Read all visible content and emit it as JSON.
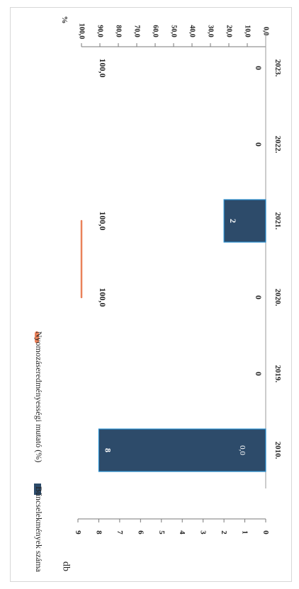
{
  "chart_data": {
    "type": "bar",
    "orientation": "rotated-90",
    "categories": [
      "2010.",
      "2019.",
      "2020.",
      "2021.",
      "2022.",
      "2023."
    ],
    "series": [
      {
        "name": "Bűncselekmények száma",
        "kind": "bar",
        "axis": "left",
        "values": [
          8,
          0,
          0,
          2,
          0,
          0
        ],
        "labels": [
          "8",
          "0",
          "0",
          "2",
          "0",
          "0"
        ],
        "color": "#2d4b6a"
      },
      {
        "name": "Nyomozáseredményességi mutató (%)",
        "kind": "line",
        "axis": "right",
        "values": [
          0.0,
          null,
          100.0,
          100.0,
          null,
          100.0
        ],
        "labels": [
          "0,0",
          "",
          "100,0",
          "100,0",
          "",
          "100,0"
        ],
        "color": "#e9815a"
      }
    ],
    "left_axis": {
      "label": "db",
      "ylim": [
        0,
        9
      ],
      "ticks": [
        "0",
        "1",
        "2",
        "3",
        "4",
        "5",
        "6",
        "7",
        "8",
        "9"
      ]
    },
    "right_axis": {
      "label": "%",
      "ylim": [
        0,
        100
      ],
      "ticks": [
        "0,0",
        "10,0",
        "20,0",
        "30,0",
        "40,0",
        "50,0",
        "60,0",
        "70,0",
        "80,0",
        "90,0",
        "100,0"
      ]
    },
    "legend_position": "top",
    "grid": false
  }
}
